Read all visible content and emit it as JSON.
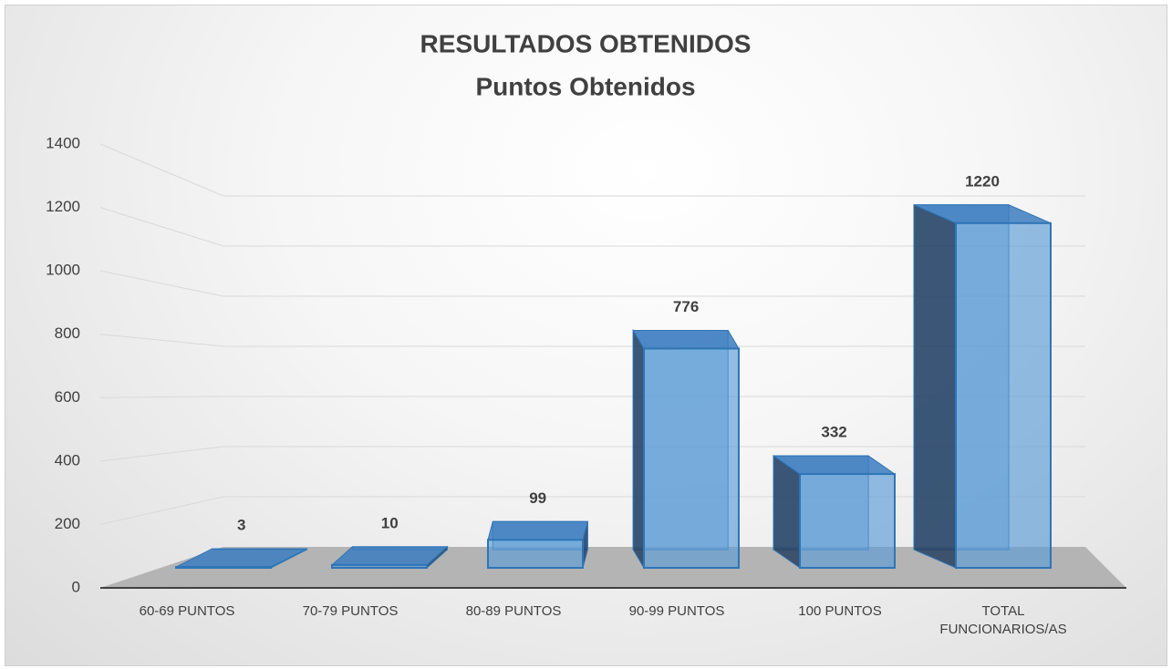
{
  "chart_data": {
    "type": "bar3d",
    "title": "RESULTADOS OBTENIDOS",
    "subtitle": "Puntos Obtenidos",
    "categories": [
      "60-69 PUNTOS",
      "70-79 PUNTOS",
      "80-89 PUNTOS",
      "90-99 PUNTOS",
      "100 PUNTOS",
      "TOTAL FUNCIONARIOS/AS"
    ],
    "values": [
      3,
      10,
      99,
      776,
      332,
      1220
    ],
    "color": "#5b9bd5",
    "ylim": [
      0,
      1400
    ],
    "yticks": [
      0,
      200,
      400,
      600,
      800,
      1000,
      1200,
      1400
    ],
    "grid": true
  }
}
